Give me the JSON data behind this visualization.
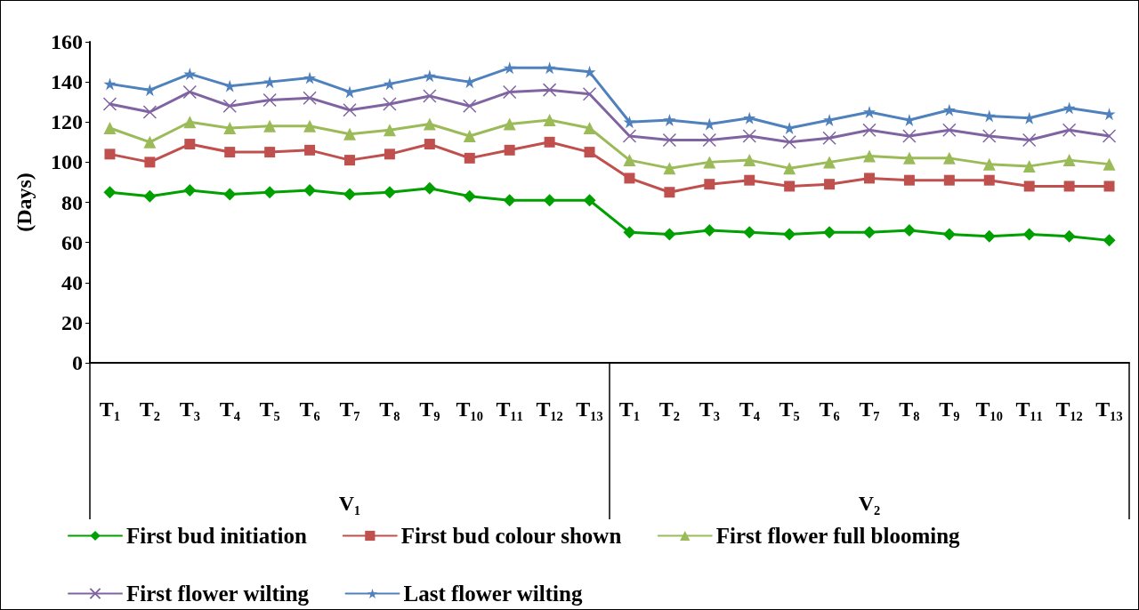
{
  "chart_data": {
    "type": "line",
    "ylabel": "(Days)",
    "categories": [
      "T₁",
      "T₂",
      "T₃",
      "T₄",
      "T₅",
      "T₆",
      "T₇",
      "T₈",
      "T₉",
      "T₁₀",
      "T₁₁",
      "T₁₂",
      "T₁₃",
      "T₁",
      "T₂",
      "T₃",
      "T₄",
      "T₅",
      "T₆",
      "T₇",
      "T₈",
      "T₉",
      "T₁₀",
      "T₁₁",
      "T₁₂",
      "T₁₃"
    ],
    "annotations": [
      "V₁",
      "V₂"
    ],
    "series": [
      {
        "name": "First bud initiation",
        "color": "#00a000",
        "marker": "diamond",
        "values": [
          85,
          83,
          86,
          84,
          85,
          86,
          84,
          85,
          87,
          83,
          81,
          81,
          81,
          65,
          64,
          66,
          65,
          64,
          65,
          65,
          66,
          64,
          63,
          64,
          63,
          61
        ]
      },
      {
        "name": "First bud colour shown",
        "color": "#c0504d",
        "marker": "square",
        "values": [
          104,
          100,
          109,
          105,
          105,
          106,
          101,
          104,
          109,
          102,
          106,
          110,
          105,
          92,
          85,
          89,
          91,
          88,
          89,
          92,
          91,
          91,
          91,
          88,
          88,
          88
        ]
      },
      {
        "name": "First flower full blooming",
        "color": "#9bbb59",
        "marker": "triangle",
        "values": [
          117,
          110,
          120,
          117,
          118,
          118,
          114,
          116,
          119,
          113,
          119,
          121,
          117,
          101,
          97,
          100,
          101,
          97,
          100,
          103,
          102,
          102,
          99,
          98,
          101,
          99
        ]
      },
      {
        "name": "First flower wilting",
        "color": "#8064a2",
        "marker": "cross",
        "values": [
          129,
          125,
          135,
          128,
          131,
          132,
          126,
          129,
          133,
          128,
          135,
          136,
          134,
          113,
          111,
          111,
          113,
          110,
          112,
          116,
          113,
          116,
          113,
          111,
          116,
          113
        ]
      },
      {
        "name": "Last flower wilting",
        "color": "#4f81bd",
        "marker": "star",
        "values": [
          139,
          136,
          144,
          138,
          140,
          142,
          135,
          139,
          143,
          140,
          147,
          147,
          145,
          120,
          121,
          119,
          122,
          117,
          121,
          125,
          121,
          126,
          123,
          122,
          127,
          124
        ]
      }
    ],
    "ylim": [
      0,
      160
    ],
    "yticks": [
      0,
      20,
      40,
      60,
      80,
      100,
      120,
      140,
      160
    ],
    "legend": "bottom",
    "grid": false,
    "line_style": "solid"
  }
}
